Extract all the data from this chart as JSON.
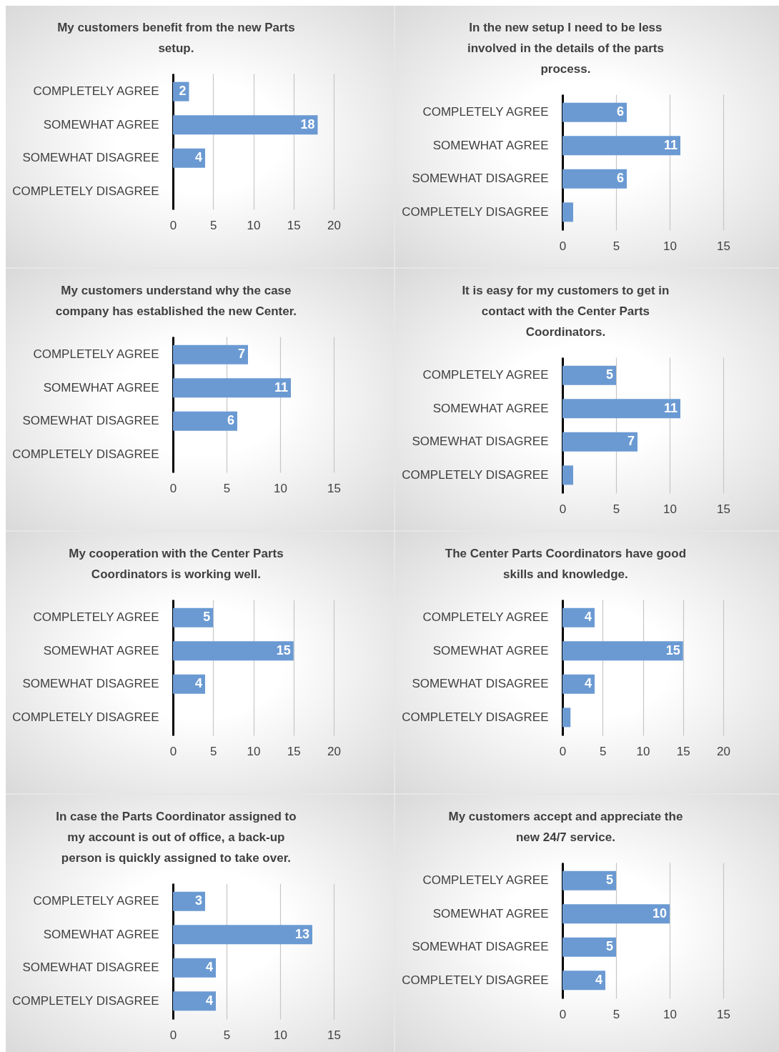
{
  "chart_data": [
    {
      "type": "bar",
      "orientation": "horizontal",
      "title": "My customers benefit from the new Parts setup.",
      "categories": [
        "COMPLETELY AGREE",
        "SOMEWHAT AGREE",
        "SOMEWHAT DISAGREE",
        "COMPLETELY DISAGREE"
      ],
      "values": [
        2,
        18,
        4,
        0
      ],
      "value_labels": [
        "2",
        "18",
        "4",
        null
      ],
      "color": "#6b9ad3",
      "xlim": [
        0,
        20
      ],
      "xticks": [
        0,
        5,
        10,
        15,
        20
      ],
      "grid": "x"
    },
    {
      "type": "bar",
      "orientation": "horizontal",
      "title": "In the new setup I need to be less involved in the details of the parts process.",
      "categories": [
        "COMPLETELY AGREE",
        "SOMEWHAT AGREE",
        "SOMEWHAT DISAGREE",
        "COMPLETELY DISAGREE"
      ],
      "values": [
        6,
        11,
        6,
        1
      ],
      "value_labels": [
        "6",
        "11",
        "6",
        null
      ],
      "color": "#6b9ad3",
      "xlim": [
        0,
        15
      ],
      "xticks": [
        0,
        5,
        10,
        15
      ],
      "grid": "x"
    },
    {
      "type": "bar",
      "orientation": "horizontal",
      "title": "My customers understand why the case company has established the new Center.",
      "categories": [
        "COMPLETELY AGREE",
        "SOMEWHAT AGREE",
        "SOMEWHAT DISAGREE",
        "COMPLETELY DISAGREE"
      ],
      "values": [
        7,
        11,
        6,
        0
      ],
      "value_labels": [
        "7",
        "11",
        "6",
        null
      ],
      "color": "#6b9ad3",
      "xlim": [
        0,
        15
      ],
      "xticks": [
        0,
        5,
        10,
        15
      ],
      "grid": "x"
    },
    {
      "type": "bar",
      "orientation": "horizontal",
      "title": "It is easy for my customers to get in contact with the Center Parts Coordinators.",
      "categories": [
        "COMPLETELY AGREE",
        "SOMEWHAT AGREE",
        "SOMEWHAT DISAGREE",
        "COMPLETELY DISAGREE"
      ],
      "values": [
        5,
        11,
        7,
        1
      ],
      "value_labels": [
        "5",
        "11",
        "7",
        null
      ],
      "color": "#6b9ad3",
      "xlim": [
        0,
        15
      ],
      "xticks": [
        0,
        5,
        10,
        15
      ],
      "grid": "x"
    },
    {
      "type": "bar",
      "orientation": "horizontal",
      "title": "My cooperation with the Center Parts Coordinators is working well.",
      "categories": [
        "COMPLETELY AGREE",
        "SOMEWHAT AGREE",
        "SOMEWHAT DISAGREE",
        "COMPLETELY DISAGREE"
      ],
      "values": [
        5,
        15,
        4,
        0
      ],
      "value_labels": [
        "5",
        "15",
        "4",
        null
      ],
      "color": "#6b9ad3",
      "xlim": [
        0,
        20
      ],
      "xticks": [
        0,
        5,
        10,
        15,
        20
      ],
      "grid": "x"
    },
    {
      "type": "bar",
      "orientation": "horizontal",
      "title": "The Center Parts Coordinators have good skills and knowledge.",
      "categories": [
        "COMPLETELY AGREE",
        "SOMEWHAT AGREE",
        "SOMEWHAT DISAGREE",
        "COMPLETELY DISAGREE"
      ],
      "values": [
        4,
        15,
        4,
        1
      ],
      "value_labels": [
        "4",
        "15",
        "4",
        null
      ],
      "color": "#6b9ad3",
      "xlim": [
        0,
        20
      ],
      "xticks": [
        0,
        5,
        10,
        15,
        20
      ],
      "grid": "x"
    },
    {
      "type": "bar",
      "orientation": "horizontal",
      "title": "In case the Parts Coordinator assigned to my account is out of office, a back-up person is quickly assigned to take over.",
      "categories": [
        "COMPLETELY AGREE",
        "SOMEWHAT AGREE",
        "SOMEWHAT DISAGREE",
        "COMPLETELY DISAGREE"
      ],
      "values": [
        3,
        13,
        4,
        4
      ],
      "value_labels": [
        "3",
        "13",
        "4",
        "4"
      ],
      "color": "#6b9ad3",
      "xlim": [
        0,
        15
      ],
      "xticks": [
        0,
        5,
        10,
        15
      ],
      "grid": "x"
    },
    {
      "type": "bar",
      "orientation": "horizontal",
      "title": "My customers accept and appreciate the new 24/7 service.",
      "categories": [
        "COMPLETELY AGREE",
        "SOMEWHAT AGREE",
        "SOMEWHAT DISAGREE",
        "COMPLETELY DISAGREE"
      ],
      "values": [
        5,
        10,
        5,
        4
      ],
      "value_labels": [
        "5",
        "10",
        "5",
        "4"
      ],
      "color": "#6b9ad3",
      "xlim": [
        0,
        15
      ],
      "xticks": [
        0,
        5,
        10,
        15
      ],
      "grid": "x"
    }
  ]
}
